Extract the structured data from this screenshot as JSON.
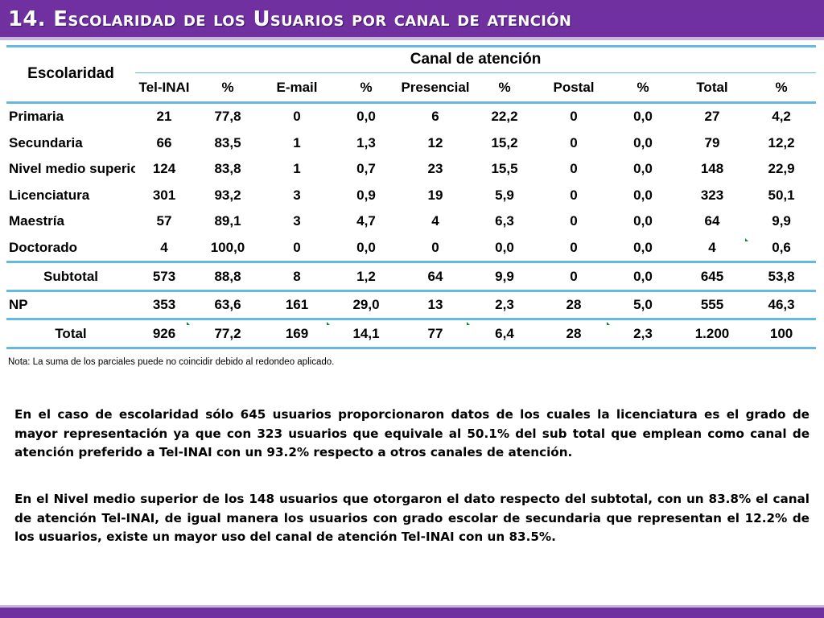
{
  "title": "14. Escolaridad de los Usuarios por canal de atención",
  "table": {
    "row_header": "Escolaridad",
    "group_header": "Canal de atención",
    "columns": [
      "Tel-INAI",
      "%",
      "E-mail",
      "%",
      "Presencial",
      "%",
      "Postal",
      "%",
      "Total",
      "%"
    ],
    "rows": [
      {
        "label": "Primaria",
        "values": [
          "21",
          "77,8",
          "0",
          "0,0",
          "6",
          "22,2",
          "0",
          "0,0",
          "27",
          "4,2"
        ]
      },
      {
        "label": "Secundaria",
        "values": [
          "66",
          "83,5",
          "1",
          "1,3",
          "12",
          "15,2",
          "0",
          "0,0",
          "79",
          "12,2"
        ]
      },
      {
        "label": "Nivel medio superior",
        "values": [
          "124",
          "83,8",
          "1",
          "0,7",
          "23",
          "15,5",
          "0",
          "0,0",
          "148",
          "22,9"
        ]
      },
      {
        "label": "Licenciatura",
        "values": [
          "301",
          "93,2",
          "3",
          "0,9",
          "19",
          "5,9",
          "0",
          "0,0",
          "323",
          "50,1"
        ]
      },
      {
        "label": "Maestría",
        "values": [
          "57",
          "89,1",
          "3",
          "4,7",
          "4",
          "6,3",
          "0",
          "0,0",
          "64",
          "9,9"
        ]
      },
      {
        "label": "Doctorado",
        "values": [
          "4",
          "100,0",
          "0",
          "0,0",
          "0",
          "0,0",
          "0",
          "0,0",
          "4",
          "0,6"
        ]
      }
    ],
    "subtotal": {
      "label": "Subtotal",
      "values": [
        "573",
        "88,8",
        "8",
        "1,2",
        "64",
        "9,9",
        "0",
        "0,0",
        "645",
        "53,8"
      ]
    },
    "np": {
      "label": "NP",
      "values": [
        "353",
        "63,6",
        "161",
        "29,0",
        "13",
        "2,3",
        "28",
        "5,0",
        "555",
        "46,3"
      ]
    },
    "total": {
      "label": "Total",
      "values": [
        "926",
        "77,2",
        "169",
        "14,1",
        "77",
        "6,4",
        "28",
        "2,3",
        "1.200",
        "100"
      ]
    }
  },
  "note": "Nota: La suma de los parciales puede no coincidir debido al redondeo aplicado.",
  "paragraphs": [
    "En el caso de escolaridad sólo 645 usuarios proporcionaron datos de los cuales la licenciatura es el grado de mayor representación ya que con 323 usuarios que equivale al 50.1% del sub total que emplean como canal de atención preferido a Tel-INAI con un 93.2% respecto a otros canales de atención.",
    "En el Nivel medio superior de los 148 usuarios que otorgaron el dato respecto del subtotal, con un 83.8% el canal de atención Tel-INAI, de igual manera los usuarios con grado escolar de secundaria que representan el 12.2% de los usuarios, existe un mayor uso del canal de atención Tel-INAI con un 83.5%."
  ],
  "colors": {
    "accent": "#7030a0",
    "rule": "#66b8e0"
  }
}
